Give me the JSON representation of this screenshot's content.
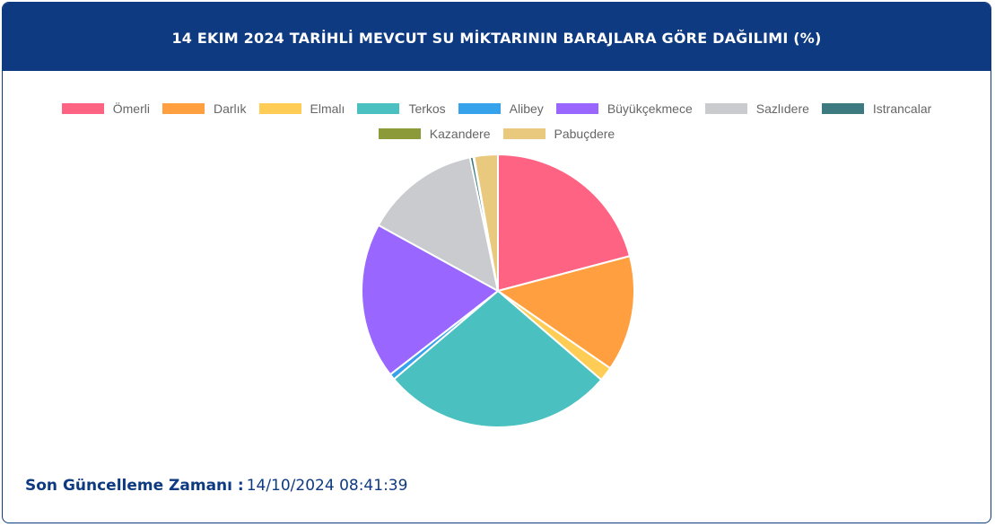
{
  "header": {
    "title": "14 EKIM 2024 TARİHLİ MEVCUT SU MİKTARININ BARAJLARA GÖRE DAĞILIMI (%)"
  },
  "chart_data": {
    "type": "pie",
    "title": "14 EKIM 2024 TARİHLİ MEVCUT SU MİKTARININ BARAJLARA GÖRE DAĞILIMI (%)",
    "legend_position": "top",
    "slices": [
      {
        "label": "Ömerli",
        "value": 20.9,
        "color": "#ff6384"
      },
      {
        "label": "Darlık",
        "value": 13.7,
        "color": "#ff9f40"
      },
      {
        "label": "Elmalı",
        "value": 1.7,
        "color": "#ffcd56"
      },
      {
        "label": "Terkos",
        "value": 27.5,
        "color": "#4bc0c0"
      },
      {
        "label": "Alibey",
        "value": 0.7,
        "color": "#36a2eb"
      },
      {
        "label": "Büyükçekmece",
        "value": 18.5,
        "color": "#9966ff"
      },
      {
        "label": "Sazlıdere",
        "value": 13.7,
        "color": "#c9cbcf"
      },
      {
        "label": "Istrancalar",
        "value": 0.4,
        "color": "#3c7a80"
      },
      {
        "label": "Kazandere",
        "value": 0.1,
        "color": "#8c9a3a"
      },
      {
        "label": "Pabuçdere",
        "value": 2.8,
        "color": "#e8c97e"
      }
    ]
  },
  "footer": {
    "label": "Son Güncelleme Zamanı :",
    "value": "14/10/2024 08:41:39"
  }
}
